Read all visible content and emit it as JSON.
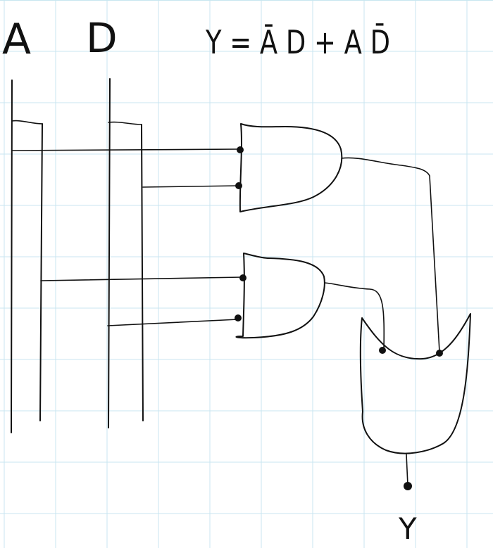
{
  "labels": {
    "input_a": "A",
    "input_d": "D",
    "equation": "Y = Ā D + A D̄",
    "output": "Y"
  },
  "colors": {
    "paper": "#ffffff",
    "grid": "#c8e6f0",
    "ink": "#111111"
  }
}
